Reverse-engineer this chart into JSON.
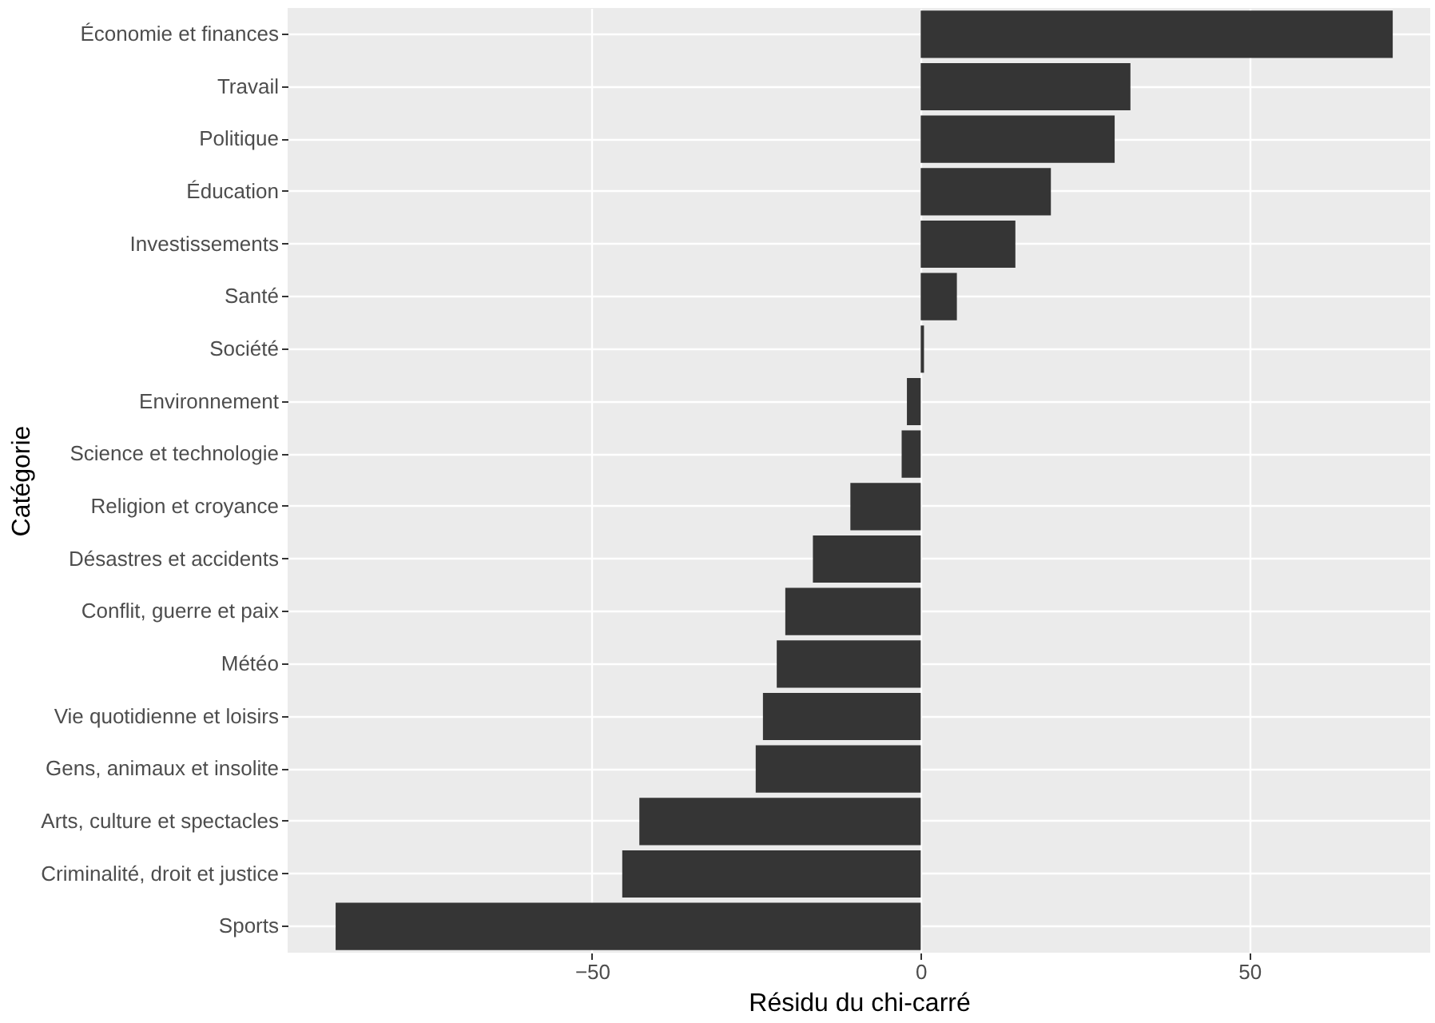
{
  "chart_data": {
    "type": "bar",
    "orientation": "horizontal",
    "xlabel": "Résidu du chi-carré",
    "ylabel": "Catégorie",
    "categories": [
      "Économie et finances",
      "Travail",
      "Politique",
      "Éducation",
      "Investissements",
      "Santé",
      "Société",
      "Environnement",
      "Science et technologie",
      "Religion et croyance",
      "Désastres et accidents",
      "Conflit, guerre et paix",
      "Météo",
      "Vie quotidienne et loisirs",
      "Gens, animaux et insolite",
      "Arts, culture et spectacles",
      "Criminalité, droit et justice",
      "Sports"
    ],
    "values": [
      71.8,
      31.9,
      29.5,
      19.8,
      14.4,
      5.5,
      0.5,
      -2.1,
      -2.9,
      -10.7,
      -16.4,
      -20.6,
      -21.9,
      -24,
      -25.1,
      -42.8,
      -45.4,
      -89
    ],
    "color": "#353535",
    "xlim": [
      -96.3,
      77.5
    ],
    "xticks": [
      -50,
      0,
      50
    ],
    "grid": true
  }
}
